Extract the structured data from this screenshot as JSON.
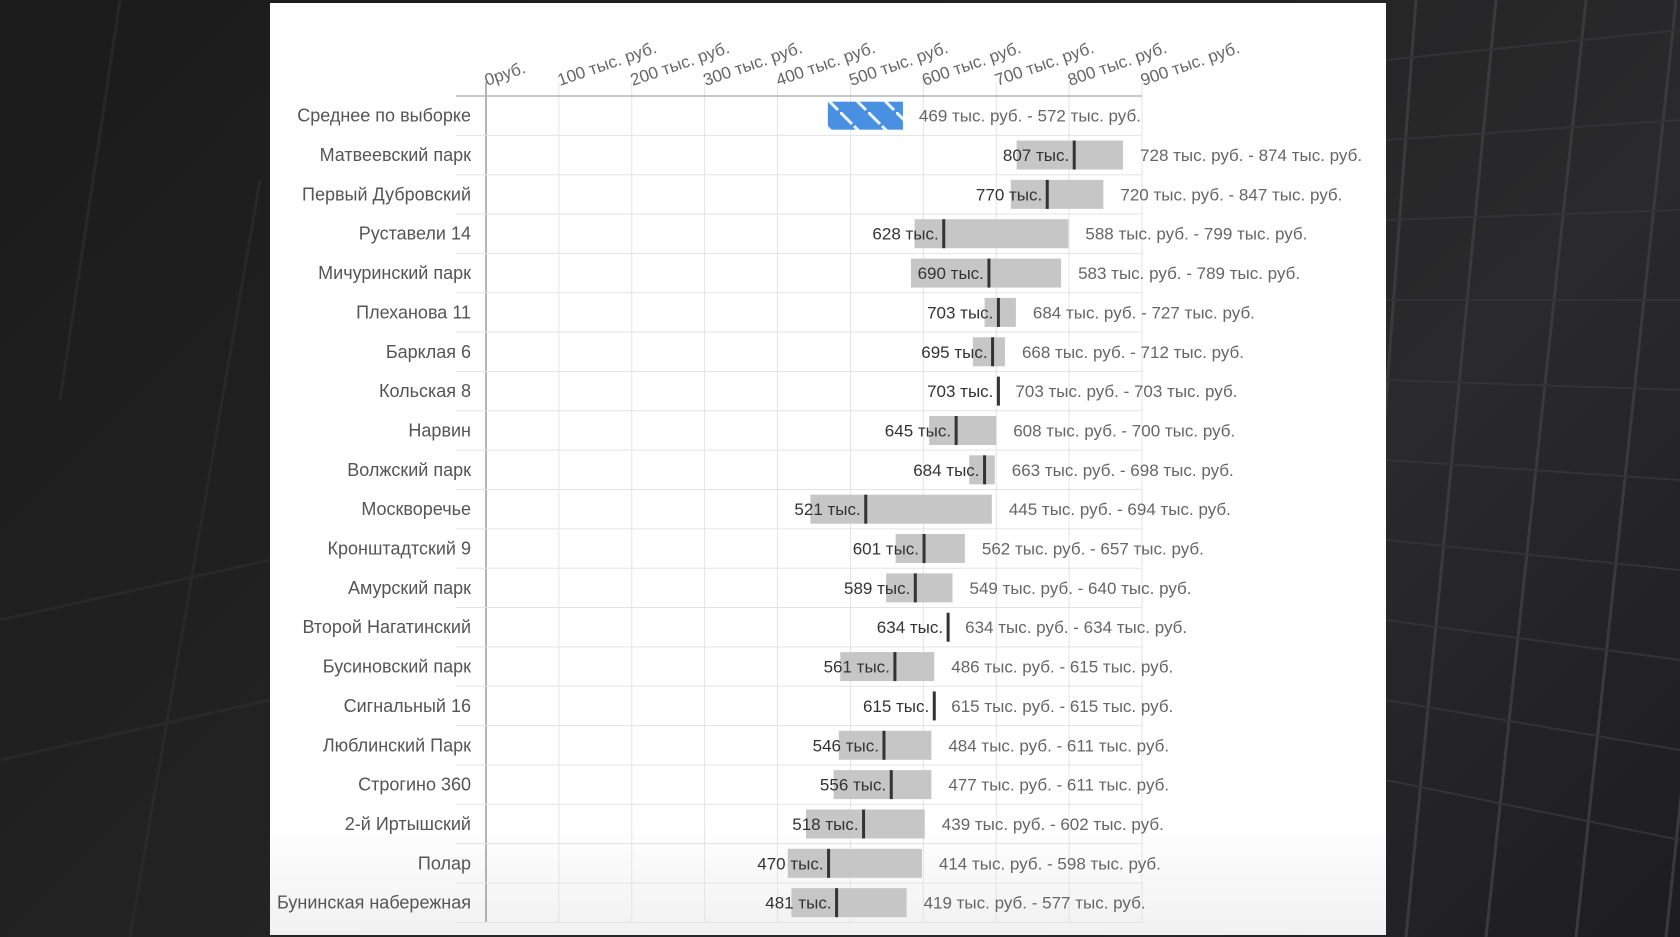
{
  "chart_data": {
    "type": "bar",
    "subtype": "range-bar-with-median",
    "title": "",
    "xlabel": "",
    "ylabel": "",
    "xlim": [
      0,
      900
    ],
    "x_unit": "тыс. руб.",
    "grid": true,
    "x_ticks": [
      {
        "value": 0,
        "label": "0руб."
      },
      {
        "value": 100,
        "label": "100 тыс. руб."
      },
      {
        "value": 200,
        "label": "200 тыс. руб."
      },
      {
        "value": 300,
        "label": "300 тыс. руб."
      },
      {
        "value": 400,
        "label": "400 тыс. руб."
      },
      {
        "value": 500,
        "label": "500 тыс. руб."
      },
      {
        "value": 600,
        "label": "600 тыс. руб."
      },
      {
        "value": 700,
        "label": "700 тыс. руб."
      },
      {
        "value": 800,
        "label": "800 тыс. руб."
      },
      {
        "value": 900,
        "label": "900 тыс. руб."
      }
    ],
    "average": {
      "name": "Среднее по выборке",
      "min": 469,
      "max": 572,
      "range_label": "469 тыс. руб. - 572 тыс. руб.",
      "color": "#4a90e2"
    },
    "series": [
      {
        "name": "Матвеевский парк",
        "min": 728,
        "max": 874,
        "median": 807,
        "median_label": "807 тыс.",
        "range_label": "728 тыс. руб. - 874 тыс. руб."
      },
      {
        "name": "Первый Дубровский",
        "min": 720,
        "max": 847,
        "median": 770,
        "median_label": "770 тыс.",
        "range_label": "720 тыс. руб. - 847 тыс. руб."
      },
      {
        "name": "Руставели 14",
        "min": 588,
        "max": 799,
        "median": 628,
        "median_label": "628 тыс.",
        "range_label": "588 тыс. руб. - 799 тыс. руб."
      },
      {
        "name": "Мичуринский парк",
        "min": 583,
        "max": 789,
        "median": 690,
        "median_label": "690 тыс.",
        "range_label": "583 тыс. руб. - 789 тыс. руб."
      },
      {
        "name": "Плеханова 11",
        "min": 684,
        "max": 727,
        "median": 703,
        "median_label": "703 тыс.",
        "range_label": "684 тыс. руб. - 727 тыс. руб."
      },
      {
        "name": "Барклая 6",
        "min": 668,
        "max": 712,
        "median": 695,
        "median_label": "695 тыс.",
        "range_label": "668 тыс. руб. - 712 тыс. руб."
      },
      {
        "name": "Кольская 8",
        "min": 703,
        "max": 703,
        "median": 703,
        "median_label": "703 тыс.",
        "range_label": "703 тыс. руб. - 703 тыс. руб."
      },
      {
        "name": "Нарвин",
        "min": 608,
        "max": 700,
        "median": 645,
        "median_label": "645 тыс.",
        "range_label": "608 тыс. руб. - 700 тыс. руб."
      },
      {
        "name": "Волжский парк",
        "min": 663,
        "max": 698,
        "median": 684,
        "median_label": "684 тыс.",
        "range_label": "663 тыс. руб. - 698 тыс. руб."
      },
      {
        "name": "Москворечье",
        "min": 445,
        "max": 694,
        "median": 521,
        "median_label": "521 тыс.",
        "range_label": "445 тыс. руб. - 694 тыс. руб."
      },
      {
        "name": "Кронштадтский 9",
        "min": 562,
        "max": 657,
        "median": 601,
        "median_label": "601 тыс.",
        "range_label": "562 тыс. руб. - 657 тыс. руб."
      },
      {
        "name": "Амурский парк",
        "min": 549,
        "max": 640,
        "median": 589,
        "median_label": "589 тыс.",
        "range_label": "549 тыс. руб. - 640 тыс. руб."
      },
      {
        "name": "Второй Нагатинский",
        "min": 634,
        "max": 634,
        "median": 634,
        "median_label": "634 тыс.",
        "range_label": "634 тыс. руб. - 634 тыс. руб."
      },
      {
        "name": "Бусиновский парк",
        "min": 486,
        "max": 615,
        "median": 561,
        "median_label": "561 тыс.",
        "range_label": "486 тыс. руб. - 615 тыс. руб."
      },
      {
        "name": "Сигнальный 16",
        "min": 615,
        "max": 615,
        "median": 615,
        "median_label": "615 тыс.",
        "range_label": "615 тыс. руб. - 615 тыс. руб."
      },
      {
        "name": "Люблинский Парк",
        "min": 484,
        "max": 611,
        "median": 546,
        "median_label": "546 тыс.",
        "range_label": "484 тыс. руб. - 611 тыс. руб."
      },
      {
        "name": "Строгино 360",
        "min": 477,
        "max": 611,
        "median": 556,
        "median_label": "556 тыс.",
        "range_label": "477 тыс. руб. - 611 тыс. руб."
      },
      {
        "name": "2-й Иртышский",
        "min": 439,
        "max": 602,
        "median": 518,
        "median_label": "518 тыс.",
        "range_label": "439 тыс. руб. - 602 тыс. руб."
      },
      {
        "name": "Полар",
        "min": 414,
        "max": 598,
        "median": 470,
        "median_label": "470 тыс.",
        "range_label": "414 тыс. руб. - 598 тыс. руб."
      },
      {
        "name": "Бунинская набережная",
        "min": 419,
        "max": 577,
        "median": 481,
        "median_label": "481 тыс.",
        "range_label": "419 тыс. руб. - 577 тыс. руб."
      }
    ],
    "colors": {
      "range_bar": "#c6c6c6",
      "median_marker": "#333333",
      "average_bar": "#4a90e2",
      "grid": "#e3e3e3"
    }
  }
}
